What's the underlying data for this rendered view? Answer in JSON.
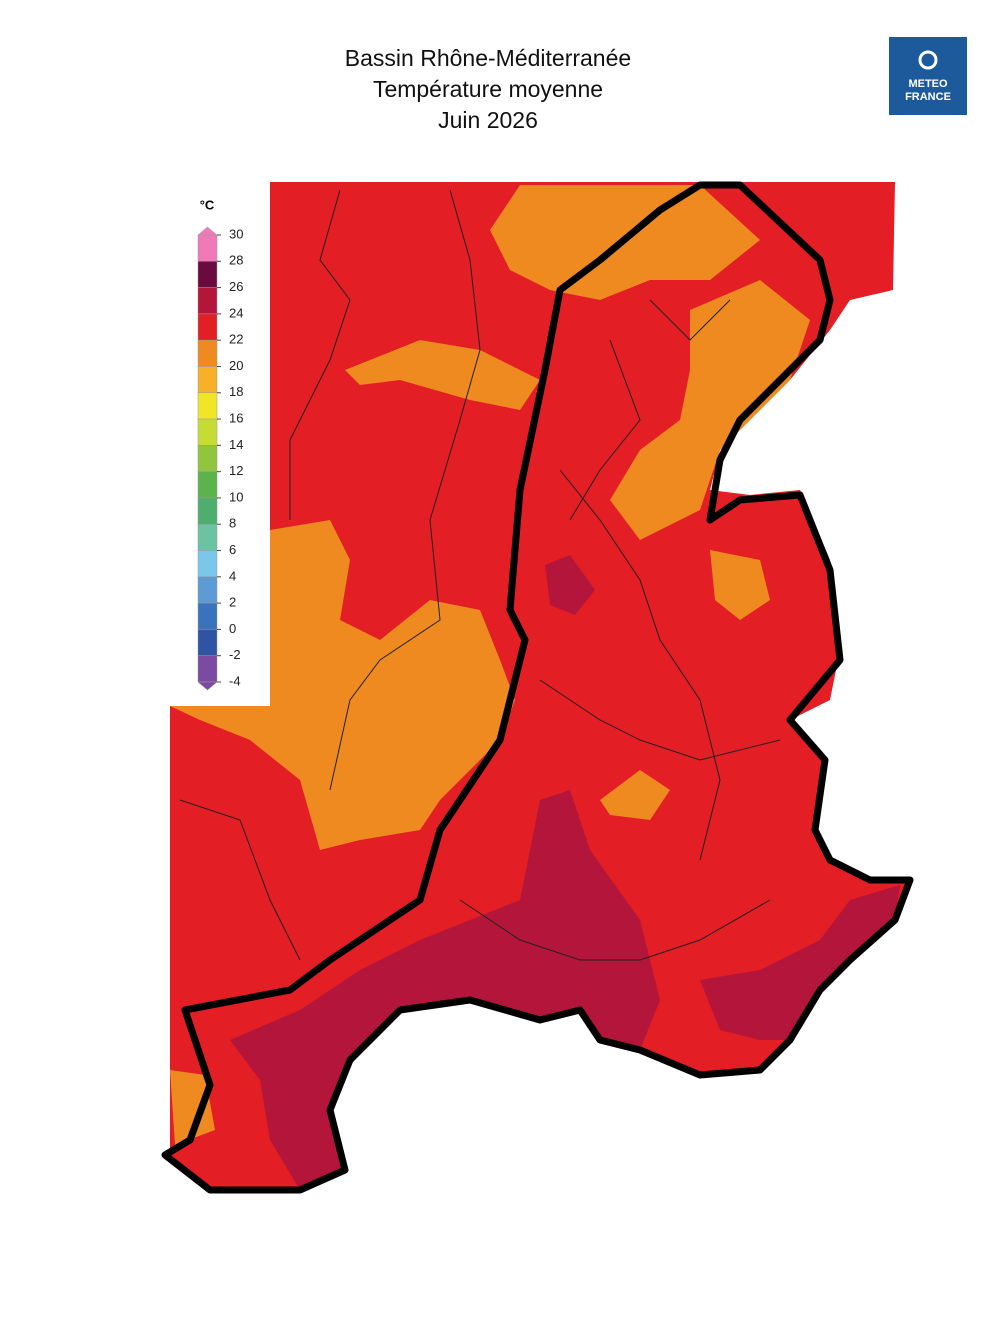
{
  "header": {
    "title": [
      "Bassin Rhône-Méditerranée",
      "Température moyenne",
      "Juin 2026"
    ],
    "logo": [
      "METEO",
      "FRANCE"
    ]
  },
  "legend": {
    "unit": "°C",
    "ticks": [
      30,
      28,
      26,
      24,
      22,
      20,
      18,
      16,
      14,
      12,
      10,
      8,
      6,
      4,
      2,
      0,
      -2,
      -4
    ],
    "colors": [
      "#f07ab8",
      "#6b0a3e",
      "#b3163a",
      "#e31e24",
      "#ef8a21",
      "#f6b128",
      "#f1e527",
      "#c6dc34",
      "#8fc63e",
      "#5bb449",
      "#4dae6d",
      "#6cc3a4",
      "#7ac7ea",
      "#5c9bd3",
      "#3a73bd",
      "#2f54a4",
      "#7b4aa3"
    ]
  }
}
